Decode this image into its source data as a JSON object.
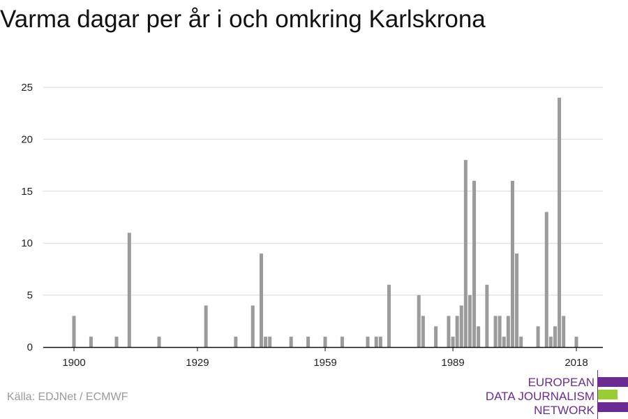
{
  "title": "Varma dagar per år i och omkring Karlskrona",
  "source": "Källa: EDJNet / ECMWF",
  "logo": {
    "lines": [
      "EUROPEAN",
      "DATA JOURNALISM",
      "NETWORK"
    ],
    "colors": {
      "purple": "#6b2c91",
      "green": "#9acd32"
    }
  },
  "colors": {
    "bar": "#9b9b9b",
    "grid": "#d9d9d9",
    "axis": "#111111"
  },
  "chart_data": {
    "type": "bar",
    "title": "Varma dagar per år i och omkring Karlskrona",
    "xlabel": "",
    "ylabel": "",
    "xlim": [
      1900,
      2018
    ],
    "ylim": [
      0,
      25
    ],
    "yticks": [
      0,
      5,
      10,
      15,
      20,
      25
    ],
    "xticks": [
      1900,
      1929,
      1959,
      1989,
      2018
    ],
    "grid": "horizontal",
    "x": [
      1900,
      1904,
      1910,
      1913,
      1920,
      1931,
      1938,
      1942,
      1944,
      1945,
      1946,
      1951,
      1955,
      1959,
      1963,
      1969,
      1971,
      1972,
      1974,
      1981,
      1982,
      1985,
      1988,
      1989,
      1990,
      1991,
      1992,
      1993,
      1994,
      1995,
      1997,
      1999,
      2000,
      2001,
      2002,
      2003,
      2004,
      2005,
      2009,
      2011,
      2012,
      2013,
      2014,
      2015,
      2018
    ],
    "values": [
      3,
      1,
      1,
      11,
      1,
      4,
      1,
      4,
      9,
      1,
      1,
      1,
      1,
      1,
      1,
      1,
      1,
      1,
      6,
      5,
      3,
      2,
      3,
      1,
      3,
      4,
      18,
      5,
      16,
      2,
      6,
      3,
      3,
      1,
      3,
      16,
      9,
      1,
      2,
      13,
      1,
      2,
      24,
      3,
      1
    ]
  }
}
